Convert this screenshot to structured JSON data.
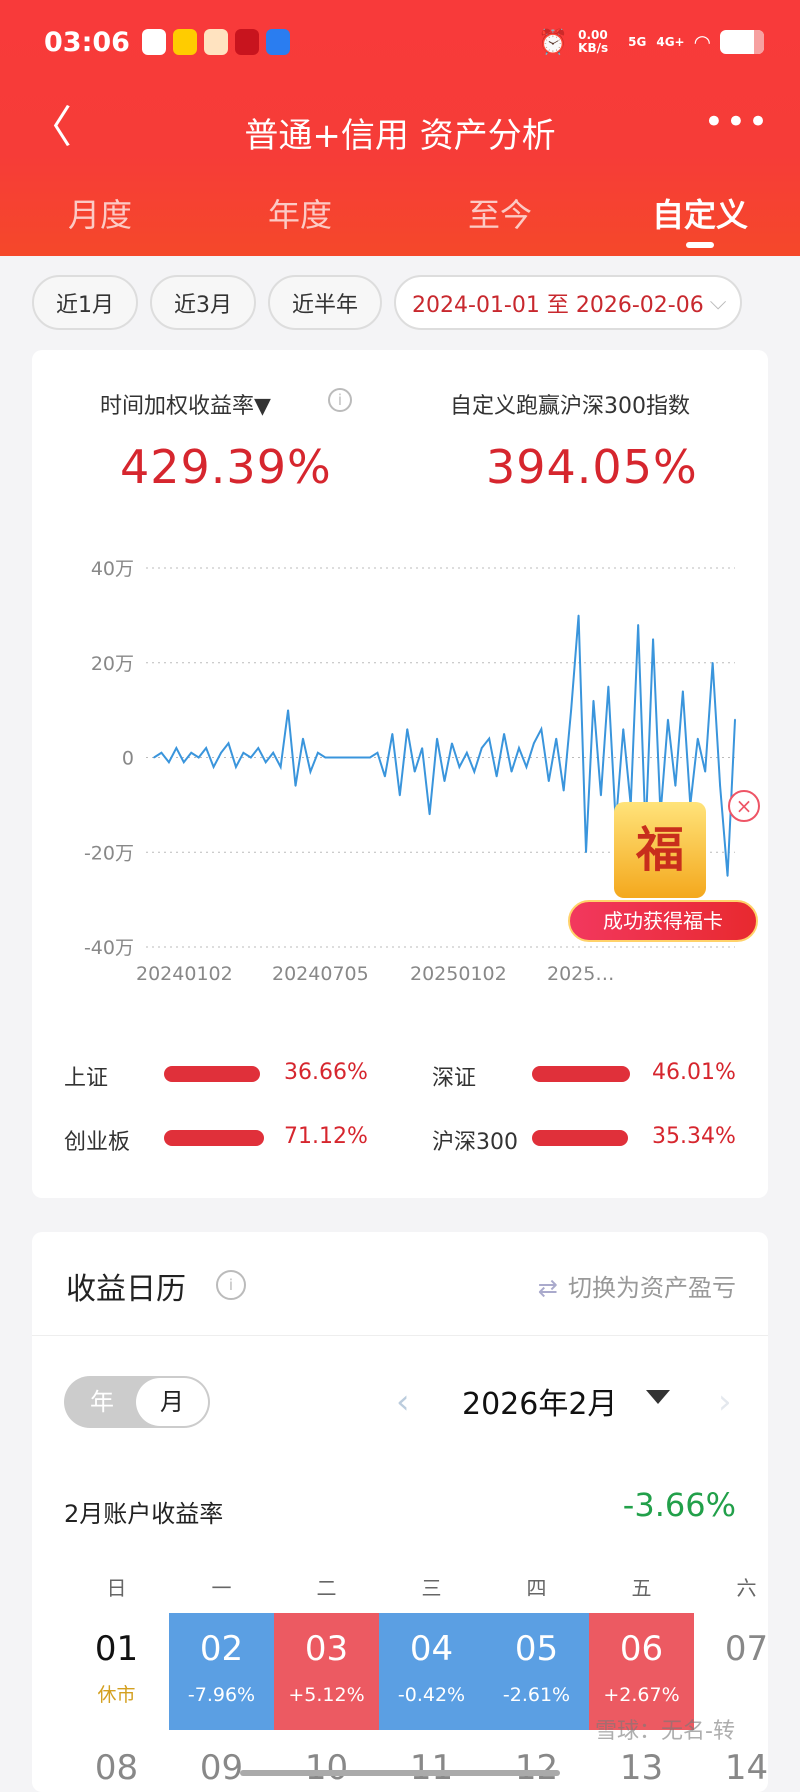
{
  "status": {
    "time": "03:06",
    "net_speed": "0.00 KB/s",
    "sig1": "5G",
    "sig2": "4G+"
  },
  "header": {
    "title": "普通+信用 资产分析"
  },
  "tabs": [
    "月度",
    "年度",
    "至今",
    "自定义"
  ],
  "active_tab": "自定义",
  "chips": [
    "近1月",
    "近3月",
    "近半年"
  ],
  "date_range": "2024-01-01 至 2026-02-06",
  "summary": {
    "label1": "时间加权收益率▼",
    "value1": "429.39%",
    "label2": "自定义跑赢沪深300指数",
    "value2": "394.05%"
  },
  "chart_data": {
    "type": "line",
    "ylabel": "",
    "xlabel": "",
    "ylim": [
      -40,
      40
    ],
    "y_unit": "万",
    "y_ticks": [
      "40万",
      "20万",
      "0",
      "-20万",
      "-40万"
    ],
    "x_ticks": [
      "20240102",
      "20240705",
      "20250102",
      "2025…"
    ],
    "grid": true,
    "color": "#3a95dc",
    "values": [
      0,
      1,
      -1,
      2,
      -1,
      1,
      0,
      2,
      -2,
      1,
      3,
      -2,
      1,
      0,
      2,
      -1,
      1,
      -2,
      10,
      -6,
      4,
      -3,
      1,
      0,
      0,
      0,
      0,
      0,
      0,
      0,
      1,
      -4,
      5,
      -8,
      6,
      -3,
      2,
      -12,
      4,
      -5,
      3,
      -2,
      1,
      -3,
      2,
      4,
      -4,
      5,
      -3,
      2,
      -2,
      3,
      6,
      -5,
      4,
      -7,
      10,
      30,
      -20,
      12,
      -8,
      15,
      -14,
      6,
      -10,
      28,
      -16,
      25,
      -12,
      8,
      -6,
      14,
      -10,
      4,
      -3,
      20,
      -6,
      -25,
      8
    ]
  },
  "indices": [
    {
      "name": "上证",
      "value": "36.66%"
    },
    {
      "name": "深证",
      "value": "46.01%"
    },
    {
      "name": "创业板",
      "value": "71.12%"
    },
    {
      "name": "沪深300",
      "value": "35.34%"
    }
  ],
  "calendar": {
    "title": "收益日历",
    "switch": "切换为资产盈亏",
    "toggle": [
      "年",
      "月"
    ],
    "month": "2026年2月",
    "month_return_label": "2月账户收益率",
    "month_return": "-3.66%",
    "weekdays": [
      "日",
      "一",
      "二",
      "三",
      "四",
      "五",
      "六"
    ],
    "days": [
      {
        "d": "01",
        "p": "休市",
        "c": "none"
      },
      {
        "d": "02",
        "p": "-7.96%",
        "c": "#5b9fe3"
      },
      {
        "d": "03",
        "p": "+5.12%",
        "c": "#ec5a62"
      },
      {
        "d": "04",
        "p": "-0.42%",
        "c": "#5b9fe3"
      },
      {
        "d": "05",
        "p": "-2.61%",
        "c": "#5b9fe3"
      },
      {
        "d": "06",
        "p": "+2.67%",
        "c": "#ec5a62"
      },
      {
        "d": "07",
        "p": "",
        "c": "none"
      }
    ],
    "row2": [
      "08",
      "09",
      "10",
      "11",
      "12",
      "13",
      "14"
    ]
  },
  "popup": {
    "glyph": "福",
    "text": "成功获得福卡"
  },
  "watermark": "雪球：无名-转"
}
